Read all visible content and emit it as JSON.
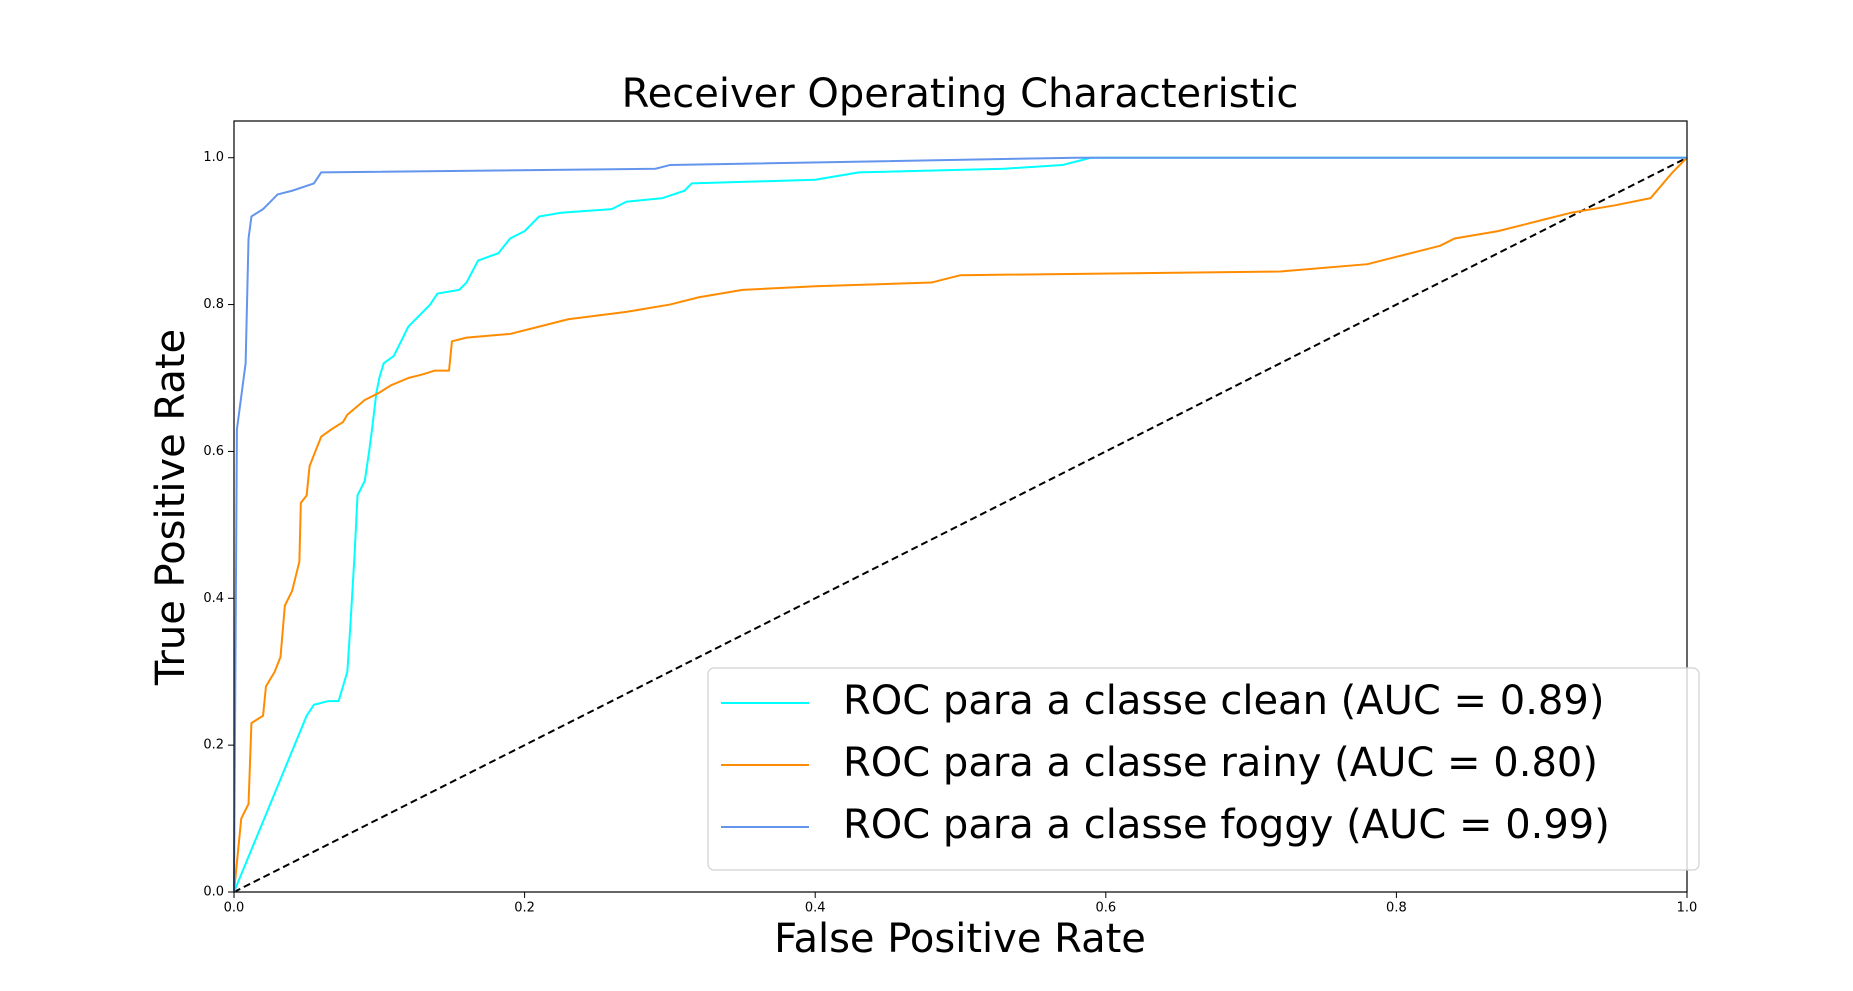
{
  "chart_data": {
    "type": "line",
    "title": "Receiver Operating Characteristic",
    "x_label": "False Positive Rate",
    "y_label": "True Positive Rate",
    "xlim": [
      0,
      1.0
    ],
    "ylim": [
      0,
      1.05
    ],
    "xticks": [
      {
        "value": 0,
        "label": "0.0"
      },
      0.2,
      0.4,
      0.6,
      0.8,
      {
        "value": 1,
        "label": "1.0"
      }
    ],
    "yticks": [
      {
        "value": 0,
        "label": "0.0"
      },
      0.2,
      0.4,
      0.6,
      0.8,
      {
        "value": 1,
        "label": "1.0"
      }
    ],
    "legend": "lower right",
    "reference_line": {
      "x": [
        0,
        1
      ],
      "values": [
        0,
        1
      ],
      "color": "#000000",
      "dashed": true
    },
    "series": [
      {
        "name": "ROC para a classe clean (AUC = 0.89)",
        "color": "#00ffff",
        "x": [
          0,
          0.05,
          0.055,
          0.065,
          0.072,
          0.075,
          0.078,
          0.08,
          0.083,
          0.085,
          0.09,
          0.093,
          0.095,
          0.098,
          0.1,
          0.103,
          0.11,
          0.115,
          0.12,
          0.13,
          0.135,
          0.14,
          0.155,
          0.16,
          0.168,
          0.182,
          0.19,
          0.2,
          0.21,
          0.225,
          0.26,
          0.27,
          0.295,
          0.31,
          0.315,
          0.4,
          0.43,
          0.53,
          0.57,
          0.58,
          0.59,
          1.0
        ],
        "values": [
          0,
          0.24,
          0.255,
          0.26,
          0.26,
          0.28,
          0.3,
          0.36,
          0.46,
          0.54,
          0.56,
          0.6,
          0.63,
          0.68,
          0.7,
          0.72,
          0.73,
          0.75,
          0.77,
          0.79,
          0.8,
          0.815,
          0.82,
          0.83,
          0.86,
          0.87,
          0.89,
          0.9,
          0.92,
          0.925,
          0.93,
          0.94,
          0.945,
          0.955,
          0.965,
          0.97,
          0.98,
          0.985,
          0.99,
          0.995,
          1.0,
          1.0
        ]
      },
      {
        "name": "ROC para a classe rainy (AUC = 0.80)",
        "color": "#ff8c00",
        "x": [
          0,
          0.005,
          0.01,
          0.012,
          0.02,
          0.022,
          0.028,
          0.032,
          0.035,
          0.04,
          0.045,
          0.046,
          0.05,
          0.052,
          0.056,
          0.06,
          0.067,
          0.075,
          0.078,
          0.09,
          0.1,
          0.108,
          0.12,
          0.13,
          0.138,
          0.148,
          0.15,
          0.16,
          0.19,
          0.21,
          0.23,
          0.27,
          0.3,
          0.32,
          0.35,
          0.4,
          0.48,
          0.5,
          0.72,
          0.78,
          0.8,
          0.83,
          0.84,
          0.87,
          0.9,
          0.92,
          0.95,
          0.975,
          0.99,
          1.0
        ],
        "values": [
          0,
          0.1,
          0.12,
          0.23,
          0.24,
          0.28,
          0.3,
          0.32,
          0.39,
          0.41,
          0.45,
          0.53,
          0.54,
          0.58,
          0.6,
          0.62,
          0.63,
          0.64,
          0.65,
          0.67,
          0.68,
          0.69,
          0.7,
          0.705,
          0.71,
          0.71,
          0.75,
          0.755,
          0.76,
          0.77,
          0.78,
          0.79,
          0.8,
          0.81,
          0.82,
          0.825,
          0.83,
          0.84,
          0.845,
          0.855,
          0.865,
          0.88,
          0.89,
          0.9,
          0.915,
          0.925,
          0.935,
          0.945,
          0.98,
          1.0
        ]
      },
      {
        "name": "ROC para a classe foggy (AUC = 0.99)",
        "color": "#6495ed",
        "x": [
          0,
          0.002,
          0.008,
          0.01,
          0.012,
          0.02,
          0.025,
          0.03,
          0.04,
          0.055,
          0.06,
          0.29,
          0.3,
          0.58,
          1.0
        ],
        "values": [
          0,
          0.63,
          0.72,
          0.89,
          0.92,
          0.93,
          0.94,
          0.95,
          0.955,
          0.965,
          0.98,
          0.985,
          0.99,
          1.0,
          1.0
        ]
      }
    ]
  }
}
